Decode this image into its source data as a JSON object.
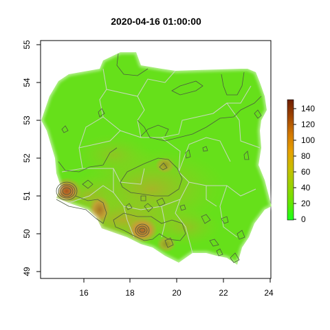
{
  "title": "2020-04-16 01:00:00",
  "map": {
    "x_ticks": [
      "16",
      "18",
      "20",
      "22",
      "24"
    ],
    "y_ticks": [
      "49",
      "50",
      "51",
      "52",
      "53",
      "54",
      "55"
    ],
    "x_range": [
      14.0,
      24.2
    ],
    "y_range": [
      48.8,
      55.2
    ],
    "fill_colors": {
      "low": "#66e01a",
      "mid": "#9ac81e",
      "high": "#c69a38"
    },
    "hotspots": [
      {
        "lon": 15.2,
        "lat": 51.15,
        "value": 120
      },
      {
        "lon": 18.5,
        "lat": 50.1,
        "value": 90
      },
      {
        "lon": 16.7,
        "lat": 50.7,
        "value": 70
      }
    ]
  },
  "legend": {
    "labels": [
      "0",
      "20",
      "40",
      "60",
      "80",
      "100",
      "120",
      "140"
    ],
    "min": 0,
    "max": 150,
    "colors": [
      "#1aff1a",
      "#66e600",
      "#99d200",
      "#c8be00",
      "#e6a000",
      "#d27800",
      "#a04600",
      "#6e1e00"
    ]
  }
}
